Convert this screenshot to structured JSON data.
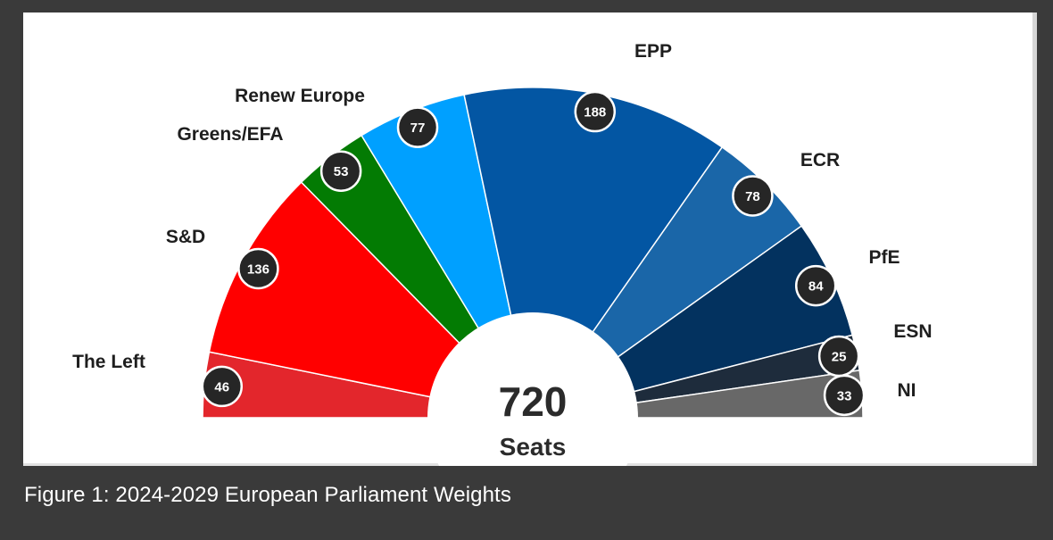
{
  "caption": "Figure 1: 2024-2029 European Parliament Weights",
  "chart_data": {
    "type": "pie",
    "subtype": "parliament-hemicycle",
    "total": 720,
    "center_value": "720",
    "center_label": "Seats",
    "series": [
      {
        "name": "The Left",
        "value": 46,
        "color": "#e3262c"
      },
      {
        "name": "S&D",
        "value": 136,
        "color": "#ff0000"
      },
      {
        "name": "Greens/EFA",
        "value": 53,
        "color": "#037b03"
      },
      {
        "name": "Renew Europe",
        "value": 77,
        "color": "#00a0ff"
      },
      {
        "name": "EPP",
        "value": 188,
        "color": "#0356a3"
      },
      {
        "name": "ECR",
        "value": 78,
        "color": "#1a66a8"
      },
      {
        "name": "PfE",
        "value": 84,
        "color": "#03325f"
      },
      {
        "name": "ESN",
        "value": 25,
        "color": "#1e2c3c"
      },
      {
        "name": "NI",
        "value": 33,
        "color": "#686868"
      }
    ]
  }
}
